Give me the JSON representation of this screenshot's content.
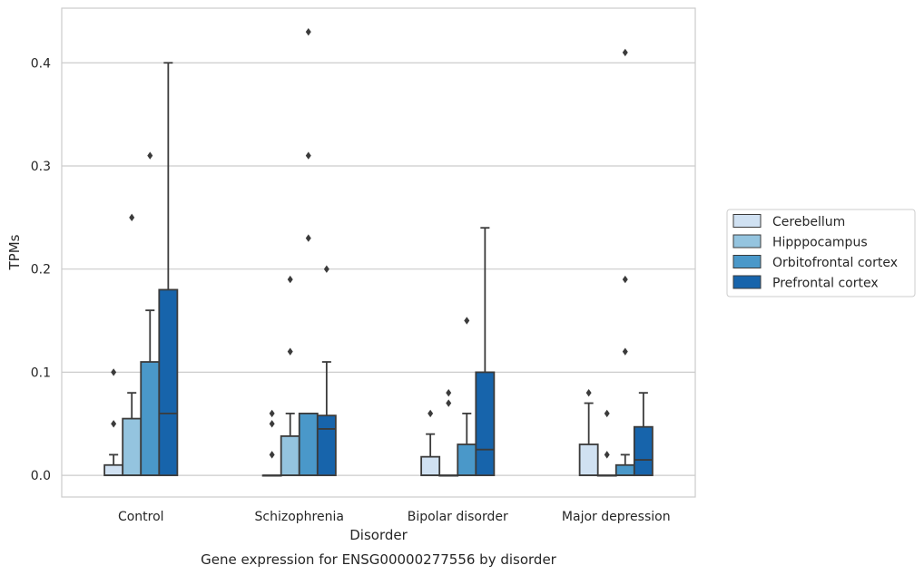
{
  "chart_data": {
    "type": "box",
    "caption": "Gene expression for ENSG00000277556 by disorder",
    "xlabel": "Disorder",
    "ylabel": "TPMs",
    "ylim": [
      -0.021,
      0.453
    ],
    "yticks": [
      "0.0",
      "0.1",
      "0.2",
      "0.3",
      "0.4"
    ],
    "ytick_values": [
      0.0,
      0.1,
      0.2,
      0.3,
      0.4
    ],
    "grid": true,
    "legend_position": "right",
    "categories": [
      "Control",
      "Schizophrenia",
      "Bipolar disorder",
      "Major depression"
    ],
    "series": [
      {
        "name": "Cerebellum",
        "color": "#d0e1f2",
        "boxes": [
          {
            "q1": 0.0,
            "median": 0.0,
            "q3": 0.01,
            "whisker_low": 0.0,
            "whisker_high": 0.02,
            "outliers": [
              0.05,
              0.1
            ]
          },
          {
            "q1": 0.0,
            "median": 0.0,
            "q3": 0.0,
            "whisker_low": 0.0,
            "whisker_high": 0.0,
            "outliers": [
              0.02,
              0.05,
              0.06
            ]
          },
          {
            "q1": 0.0,
            "median": 0.0,
            "q3": 0.018,
            "whisker_low": 0.0,
            "whisker_high": 0.04,
            "outliers": [
              0.06
            ]
          },
          {
            "q1": 0.0,
            "median": 0.0,
            "q3": 0.03,
            "whisker_low": 0.0,
            "whisker_high": 0.07,
            "outliers": [
              0.08
            ]
          }
        ]
      },
      {
        "name": "Hipppocampus",
        "color": "#94c4df",
        "boxes": [
          {
            "q1": 0.0,
            "median": 0.0,
            "q3": 0.055,
            "whisker_low": 0.0,
            "whisker_high": 0.08,
            "outliers": [
              0.25
            ]
          },
          {
            "q1": 0.0,
            "median": 0.0,
            "q3": 0.038,
            "whisker_low": 0.0,
            "whisker_high": 0.06,
            "outliers": [
              0.12,
              0.19
            ]
          },
          {
            "q1": 0.0,
            "median": 0.0,
            "q3": 0.0,
            "whisker_low": 0.0,
            "whisker_high": 0.0,
            "outliers": [
              0.07,
              0.08
            ]
          },
          {
            "q1": 0.0,
            "median": 0.0,
            "q3": 0.0,
            "whisker_low": 0.0,
            "whisker_high": 0.0,
            "outliers": [
              0.02,
              0.06
            ]
          }
        ]
      },
      {
        "name": "Orbitofrontal cortex",
        "color": "#4a98c9",
        "boxes": [
          {
            "q1": 0.0,
            "median": 0.0,
            "q3": 0.11,
            "whisker_low": 0.0,
            "whisker_high": 0.16,
            "outliers": [
              0.31
            ]
          },
          {
            "q1": 0.0,
            "median": 0.0,
            "q3": 0.06,
            "whisker_low": 0.0,
            "whisker_high": 0.06,
            "outliers": [
              0.23,
              0.31,
              0.43
            ]
          },
          {
            "q1": 0.0,
            "median": 0.0,
            "q3": 0.03,
            "whisker_low": 0.0,
            "whisker_high": 0.06,
            "outliers": [
              0.15
            ]
          },
          {
            "q1": 0.0,
            "median": 0.0,
            "q3": 0.01,
            "whisker_low": 0.0,
            "whisker_high": 0.02,
            "outliers": [
              0.12,
              0.19,
              0.41
            ]
          }
        ]
      },
      {
        "name": "Prefrontal cortex",
        "color": "#1764ab",
        "boxes": [
          {
            "q1": 0.0,
            "median": 0.06,
            "q3": 0.18,
            "whisker_low": 0.0,
            "whisker_high": 0.4,
            "outliers": []
          },
          {
            "q1": 0.0,
            "median": 0.045,
            "q3": 0.058,
            "whisker_low": 0.0,
            "whisker_high": 0.11,
            "outliers": [
              0.2
            ]
          },
          {
            "q1": 0.0,
            "median": 0.025,
            "q3": 0.1,
            "whisker_low": 0.0,
            "whisker_high": 0.24,
            "outliers": []
          },
          {
            "q1": 0.0,
            "median": 0.015,
            "q3": 0.047,
            "whisker_low": 0.0,
            "whisker_high": 0.08,
            "outliers": []
          }
        ]
      }
    ]
  }
}
